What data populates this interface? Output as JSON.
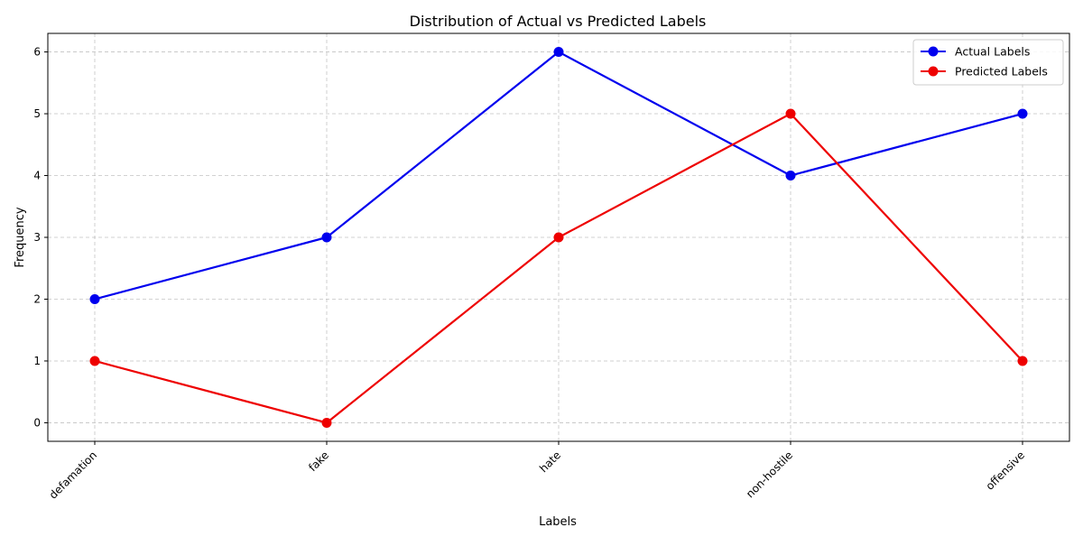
{
  "chart_data": {
    "type": "line",
    "title": "Distribution of Actual vs Predicted Labels",
    "xlabel": "Labels",
    "ylabel": "Frequency",
    "categories": [
      "defamation",
      "fake",
      "hate",
      "non-hostile",
      "offensive"
    ],
    "y_ticks": [
      "0",
      "1",
      "2",
      "3",
      "4",
      "5",
      "6"
    ],
    "ylim": [
      -0.3,
      6.3
    ],
    "grid": true,
    "legend_position": "top-right",
    "x_tick_rotation": 45,
    "series": [
      {
        "name": "Actual Labels",
        "values": [
          2,
          3,
          6,
          4,
          5
        ],
        "color": "#0000ee"
      },
      {
        "name": "Predicted Labels",
        "values": [
          1,
          0,
          3,
          5,
          1
        ],
        "color": "#ee0000"
      }
    ]
  }
}
